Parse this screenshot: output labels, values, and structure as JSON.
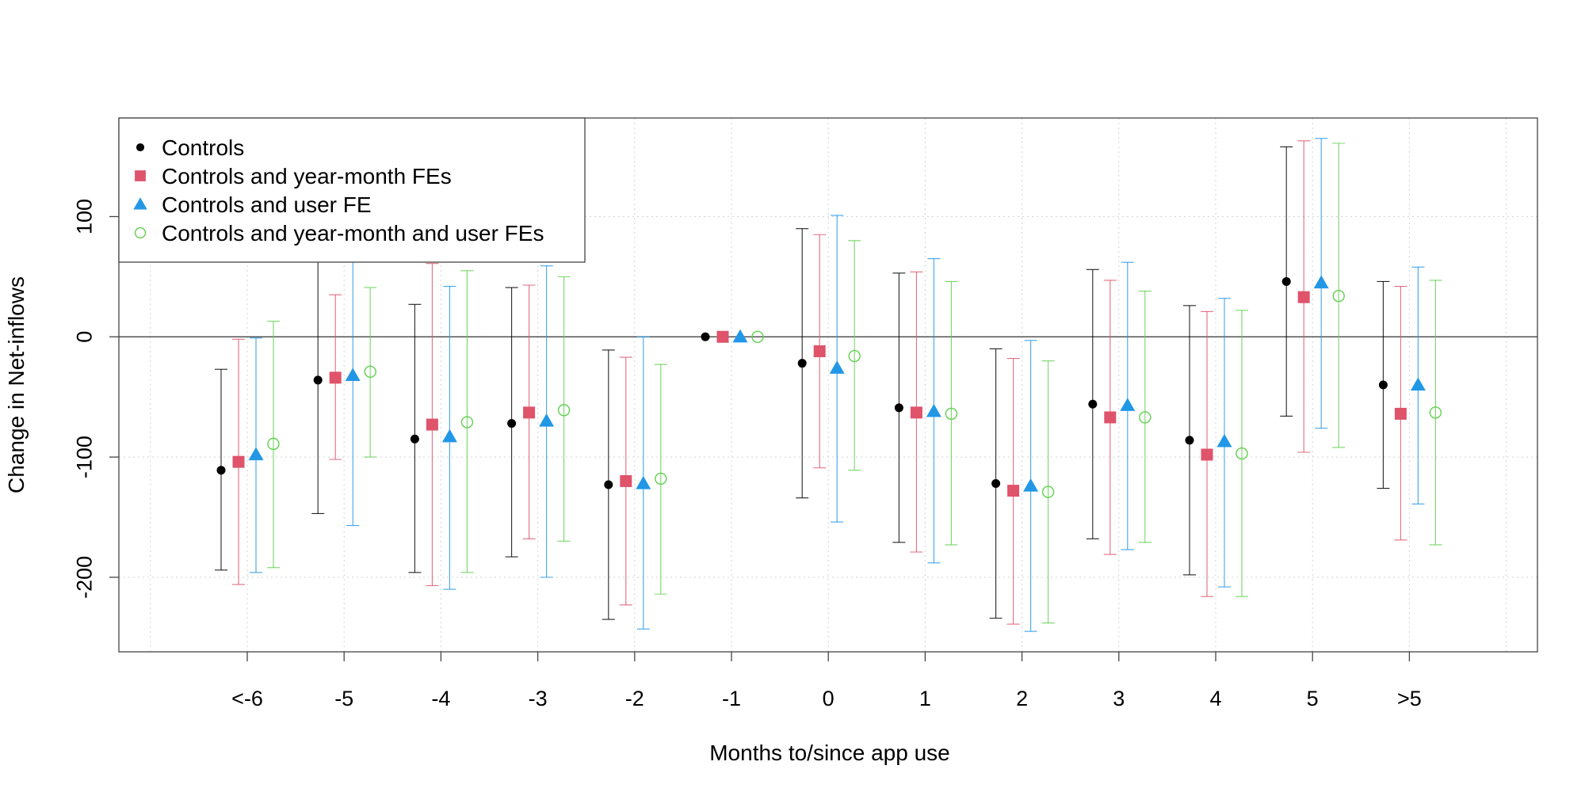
{
  "chart_data": {
    "type": "scatter",
    "title": "",
    "xlabel": "Months to/since app use",
    "ylabel": "Change in Net-inflows",
    "categories": [
      "<-6",
      "-5",
      "-4",
      "-3",
      "-2",
      "-1",
      "0",
      "1",
      "2",
      "3",
      "4",
      "5",
      ">5"
    ],
    "ylim": [
      -262,
      182
    ],
    "yticks": [
      -200,
      -100,
      0,
      100
    ],
    "ytick_labels": [
      "-200",
      "-100",
      "0",
      "100"
    ],
    "grid": true,
    "reference_line_y": 0,
    "legend_position": "top-left",
    "series": [
      {
        "name": "Controls",
        "color": "#000000",
        "marker": "filled-circle",
        "values": [
          -111,
          -36,
          -85,
          -72,
          -123,
          0,
          -22,
          -59,
          -122,
          -56,
          -86,
          46,
          -40
        ],
        "ci_low": [
          -194,
          -147,
          -196,
          -183,
          -235,
          0,
          -134,
          -171,
          -234,
          -168,
          -198,
          -66,
          -126
        ],
        "ci_high": [
          -27,
          75,
          27,
          41,
          -11,
          0,
          90,
          53,
          -10,
          56,
          26,
          158,
          46
        ]
      },
      {
        "name": "Controls and year-month FEs",
        "color": "#DF536B",
        "marker": "filled-square",
        "values": [
          -104,
          -34,
          -73,
          -63,
          -120,
          0,
          -12,
          -63,
          -128,
          -67,
          -98,
          33,
          -64
        ],
        "ci_low": [
          -206,
          -102,
          -207,
          -168,
          -223,
          0,
          -109,
          -179,
          -239,
          -181,
          -216,
          -96,
          -169
        ],
        "ci_high": [
          -2,
          35,
          61,
          43,
          -17,
          0,
          85,
          54,
          -18,
          47,
          21,
          163,
          42
        ]
      },
      {
        "name": "Controls and user FE",
        "color": "#2297E6",
        "marker": "filled-triangle",
        "values": [
          -98,
          -32,
          -83,
          -70,
          -122,
          0,
          -26,
          -62,
          -124,
          -57,
          -87,
          45,
          -40
        ],
        "ci_low": [
          -196,
          -157,
          -210,
          -200,
          -243,
          0,
          -154,
          -188,
          -245,
          -177,
          -208,
          -76,
          -139
        ],
        "ci_high": [
          -1,
          92,
          42,
          59,
          0,
          0,
          101,
          65,
          -3,
          62,
          32,
          165,
          58
        ]
      },
      {
        "name": "Controls and year-month and user FEs",
        "color": "#61D04F",
        "marker": "open-circle",
        "values": [
          -89,
          -29,
          -71,
          -61,
          -118,
          0,
          -16,
          -64,
          -129,
          -67,
          -97,
          34,
          -63
        ],
        "ci_low": [
          -192,
          -100,
          -196,
          -170,
          -214,
          0,
          -111,
          -173,
          -238,
          -171,
          -216,
          -92,
          -173
        ],
        "ci_high": [
          13,
          41,
          55,
          50,
          -23,
          0,
          80,
          46,
          -20,
          38,
          22,
          161,
          47
        ]
      }
    ]
  }
}
